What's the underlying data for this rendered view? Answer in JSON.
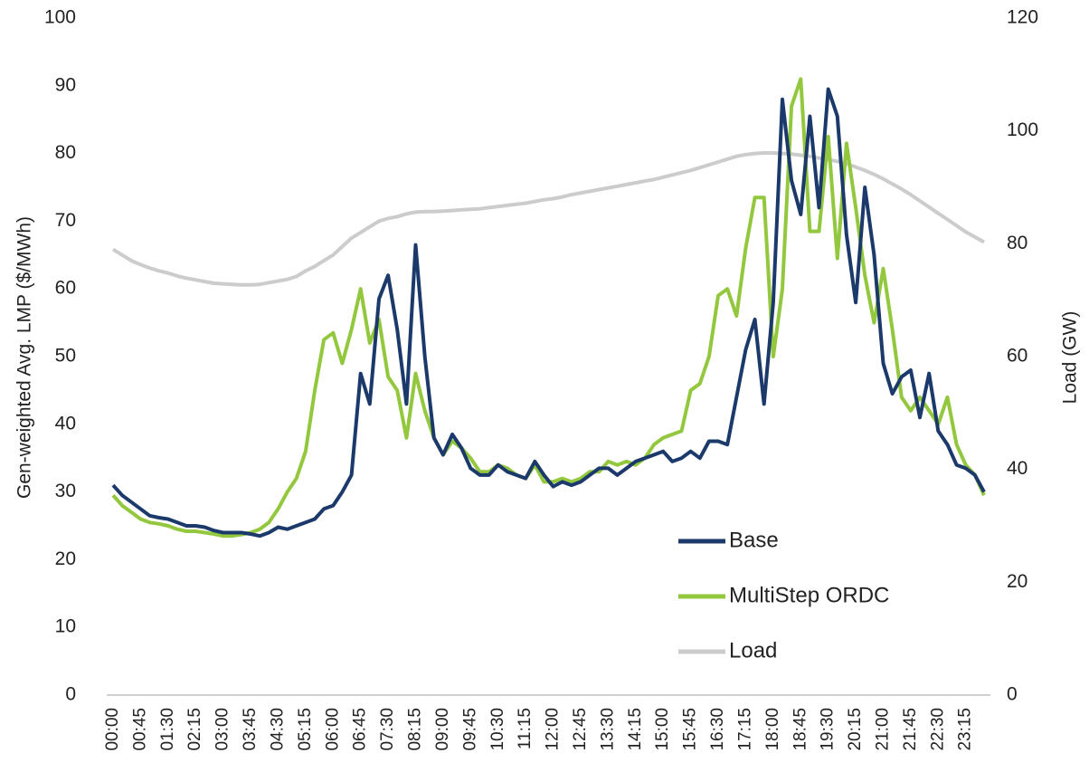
{
  "chart_data": {
    "type": "line",
    "y_label": "Gen-weighted Avg. LMP ($/MWh)",
    "y2_label": "Load (GW)",
    "categories": [
      "00:00",
      null,
      null,
      "00:45",
      null,
      null,
      "01:30",
      null,
      null,
      "02:15",
      null,
      null,
      "03:00",
      null,
      null,
      "03:45",
      null,
      null,
      "04:30",
      null,
      null,
      "05:15",
      null,
      null,
      "06:00",
      null,
      null,
      "06:45",
      null,
      null,
      "07:30",
      null,
      null,
      "08:15",
      null,
      null,
      "09:00",
      null,
      null,
      "09:45",
      null,
      null,
      "10:30",
      null,
      null,
      "11:15",
      null,
      null,
      "12:00",
      null,
      null,
      "12:45",
      null,
      null,
      "13:30",
      null,
      null,
      "14:15",
      null,
      null,
      "15:00",
      null,
      null,
      "15:45",
      null,
      null,
      "16:30",
      null,
      null,
      "17:15",
      null,
      null,
      "18:00",
      null,
      null,
      "18:45",
      null,
      null,
      "19:30",
      null,
      null,
      "20:15",
      null,
      null,
      "21:00",
      null,
      null,
      "21:45",
      null,
      null,
      "22:30",
      null,
      null,
      "23:15",
      null,
      null
    ],
    "series": [
      {
        "name": "Base",
        "color": "#1b3a6b",
        "values": [
          31,
          29.5,
          28.5,
          27.5,
          26.5,
          26.2,
          26,
          25.5,
          25,
          25,
          24.8,
          24.3,
          24,
          24,
          24,
          23.8,
          23.5,
          24,
          24.8,
          24.5,
          25,
          25.5,
          26,
          27.5,
          28,
          30,
          32.5,
          47.5,
          43,
          58.5,
          62,
          54,
          43,
          66.5,
          50,
          38,
          35.5,
          38.5,
          36.5,
          33.5,
          32.5,
          32.5,
          34,
          33,
          32.5,
          32,
          34.5,
          32.5,
          30.8,
          31.5,
          31,
          31.5,
          32.5,
          33.5,
          33.5,
          32.5,
          33.5,
          34.5,
          35,
          35.5,
          36,
          34.5,
          35,
          36,
          35,
          37.5,
          37.5,
          37,
          44,
          51,
          55.5,
          43,
          58,
          88,
          76,
          71,
          85.5,
          72,
          89.5,
          85.5,
          68,
          58,
          75,
          65,
          49,
          44.5,
          47,
          48,
          41,
          47.5,
          39,
          37,
          34,
          33.5,
          32.5,
          30
        ]
      },
      {
        "name": "MultiStep ORDC",
        "color": "#93c83e",
        "values": [
          29.5,
          28,
          27,
          26,
          25.5,
          25.3,
          25,
          24.5,
          24.2,
          24.2,
          24,
          23.8,
          23.5,
          23.5,
          23.7,
          24,
          24.5,
          25.5,
          27.5,
          30,
          32,
          36,
          45,
          52.5,
          53.5,
          49,
          54,
          60,
          52,
          55.5,
          47,
          45,
          38,
          47.5,
          42,
          38,
          35.5,
          37.5,
          36.5,
          35,
          33,
          33,
          34,
          33.5,
          32.5,
          32,
          34,
          31.5,
          31.5,
          32,
          31.5,
          32,
          33,
          33,
          34.5,
          34,
          34.5,
          34,
          35,
          37,
          38,
          38.5,
          39,
          45,
          46,
          50,
          59,
          60,
          56,
          66,
          73.5,
          73.5,
          50,
          60,
          87,
          91,
          68.5,
          68.5,
          82.5,
          64.5,
          81.5,
          72,
          62,
          55,
          63,
          54,
          44,
          42,
          44,
          42,
          40,
          44,
          37,
          34,
          32.5,
          29.5
        ]
      },
      {
        "name": "Load",
        "color": "#cccccc",
        "axis": "y2",
        "values": [
          79,
          78,
          77,
          76.3,
          75.7,
          75.2,
          74.8,
          74.3,
          73.9,
          73.6,
          73.3,
          73,
          72.9,
          72.8,
          72.7,
          72.7,
          72.8,
          73.1,
          73.4,
          73.7,
          74.2,
          75.2,
          76,
          77,
          78,
          79.5,
          81,
          82,
          83,
          84,
          84.5,
          84.8,
          85.3,
          85.6,
          85.7,
          85.7,
          85.8,
          85.9,
          86,
          86.1,
          86.2,
          86.4,
          86.6,
          86.8,
          87,
          87.2,
          87.5,
          87.8,
          88,
          88.3,
          88.7,
          89,
          89.3,
          89.6,
          89.9,
          90.2,
          90.5,
          90.8,
          91.1,
          91.4,
          91.8,
          92.2,
          92.6,
          93,
          93.5,
          94,
          94.5,
          95,
          95.5,
          95.8,
          96,
          96.1,
          96.1,
          96,
          95.9,
          95.7,
          95.5,
          95.2,
          94.9,
          94.6,
          94.2,
          93.6,
          93,
          92.3,
          91.5,
          90.6,
          89.7,
          88.7,
          87.6,
          86.5,
          85.4,
          84.3,
          83.2,
          82.1,
          81.2,
          80.3
        ]
      }
    ],
    "ylim": [
      0,
      100
    ],
    "yticks": [
      0,
      10,
      20,
      30,
      40,
      50,
      60,
      70,
      80,
      90,
      100
    ],
    "y2lim": [
      0,
      120
    ],
    "y2ticks": [
      0,
      20,
      40,
      60,
      80,
      100,
      120
    ],
    "grid": false,
    "legend": "lower right"
  }
}
